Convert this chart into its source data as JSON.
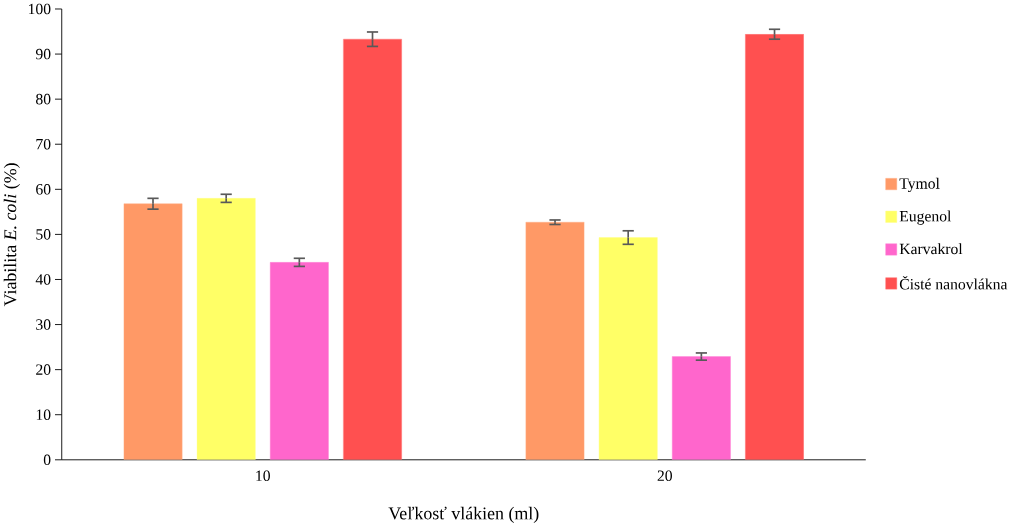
{
  "chart_data": {
    "type": "bar",
    "xlabel": "Veľkosť vlákien (ml)",
    "ylabel": "Viabilita *E. coli* (%)",
    "categories": [
      "10",
      "20"
    ],
    "series": [
      {
        "name": "Tymol",
        "color": "#ff9966",
        "values": [
          56.8,
          52.7
        ],
        "errors": [
          1.2,
          0.5
        ]
      },
      {
        "name": "Eugenol",
        "color": "#ffff66",
        "values": [
          58.0,
          49.3
        ],
        "errors": [
          0.9,
          1.5
        ]
      },
      {
        "name": "Karvakrol",
        "color": "#ff66cc",
        "values": [
          43.8,
          22.9
        ],
        "errors": [
          0.9,
          0.8
        ]
      },
      {
        "name": "Čisté nanovlákna",
        "color": "#ff5050",
        "values": [
          93.3,
          94.4
        ],
        "errors": [
          1.6,
          1.1
        ]
      }
    ],
    "ylim": [
      0,
      100
    ],
    "yticks": [
      0,
      10,
      20,
      30,
      40,
      50,
      60,
      70,
      80,
      90,
      100
    ],
    "grid": false,
    "legend": "right"
  }
}
